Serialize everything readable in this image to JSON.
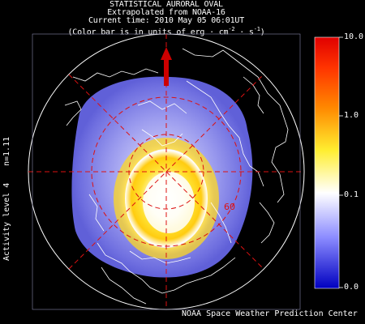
{
  "header": {
    "line1": "STATISTICAL AURORAL OVAL",
    "line2": "Extrapolated from NOAA-16",
    "line3": "Current time: 2010 May 05 06:01UT",
    "line4_prefix": "(Color bar is in units of erg · cm",
    "line4_exp1": "-2",
    "line4_mid": " · s",
    "line4_exp2": "-1",
    "line4_suffix": ")"
  },
  "side": {
    "n_label": "n=1.11",
    "activity_label": "Activity level 4"
  },
  "map": {
    "latitude_label": "60",
    "sun_arrow": "sun-direction-arrow"
  },
  "colorbar": {
    "ticks": [
      "10.0",
      "1.0",
      "0.1",
      "0.0"
    ],
    "colors": [
      "#ff0000",
      "#ff8800",
      "#ffee22",
      "#ffffff",
      "#8888ff",
      "#0000cc"
    ]
  },
  "footer": {
    "credit": "NOAA Space Weather Prediction Center"
  }
}
